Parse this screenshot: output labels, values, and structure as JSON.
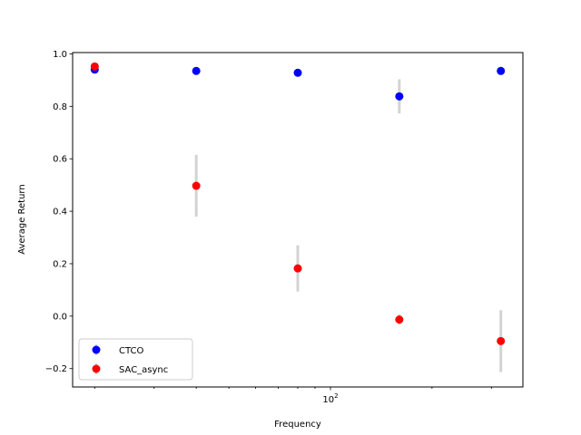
{
  "chart_data": {
    "type": "scatter",
    "xlabel": "Frequency",
    "ylabel": "Average Return",
    "xscale": "log",
    "xlim": [
      17.2,
      372
    ],
    "ylim": [
      -0.27,
      1.005
    ],
    "x": [
      20,
      40,
      80,
      160,
      320
    ],
    "x_tick_labels": [
      {
        "value": 100,
        "label": "10",
        "exponent": "2"
      }
    ],
    "y_ticks": [
      -0.2,
      0.0,
      0.2,
      0.4,
      0.6,
      0.8,
      1.0
    ],
    "y_tick_labels": [
      "−0.2",
      "0.0",
      "0.2",
      "0.4",
      "0.6",
      "0.8",
      "1.0"
    ],
    "grid": false,
    "legend_position": "lower-left",
    "errorbar_color": "#d3d3d3",
    "series": [
      {
        "name": "CTCO",
        "color": "#0000ff",
        "values": [
          0.94,
          0.935,
          0.928,
          0.838,
          0.935
        ],
        "err": [
          0.01,
          0.01,
          0.01,
          0.065,
          0.01
        ]
      },
      {
        "name": "SAC_async",
        "color": "#ff0000",
        "values": [
          0.952,
          0.497,
          0.182,
          -0.013,
          -0.095
        ],
        "err": [
          0.01,
          0.118,
          0.088,
          0.02,
          0.118
        ]
      }
    ]
  }
}
